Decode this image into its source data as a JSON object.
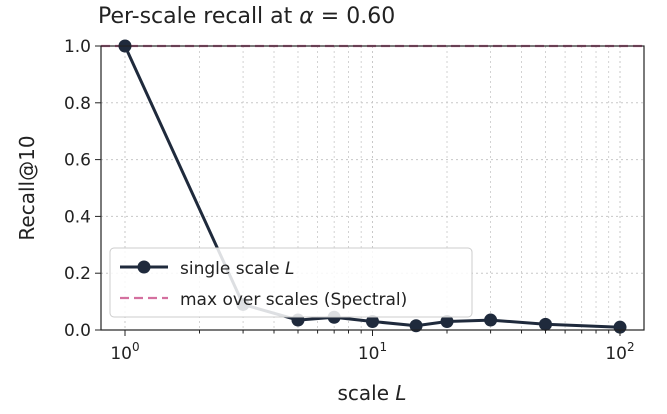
{
  "chart_data": {
    "type": "line",
    "title_prefix": "Per-scale recall at ",
    "title_symbol": "α",
    "title_suffix": " = 0.60",
    "xlabel_prefix": "scale ",
    "xlabel_symbol": "L",
    "ylabel": "Recall@10",
    "xscale": "log",
    "xlim": [
      0.8,
      125
    ],
    "ylim": [
      0.0,
      1.0
    ],
    "grid": true,
    "legend_position": "lower-left",
    "x_ticks": [
      {
        "value": 1,
        "base": "10",
        "exp": "0"
      },
      {
        "value": 10,
        "base": "10",
        "exp": "1"
      },
      {
        "value": 100,
        "base": "10",
        "exp": "2"
      }
    ],
    "y_ticks": [
      "0.0",
      "0.2",
      "0.4",
      "0.6",
      "0.8",
      "1.0"
    ],
    "series": [
      {
        "name_prefix": "single scale ",
        "name_symbol": "L",
        "color": "#1f2a3c",
        "x": [
          1,
          3,
          5,
          7,
          10,
          15,
          20,
          30,
          50,
          100
        ],
        "y": [
          1.0,
          0.09,
          0.035,
          0.045,
          0.03,
          0.015,
          0.03,
          0.035,
          0.02,
          0.01
        ]
      }
    ],
    "reference_line": {
      "name": "max over scales (Spectral)",
      "y": 1.0,
      "color": "#d4709f",
      "style": "dashed"
    }
  }
}
